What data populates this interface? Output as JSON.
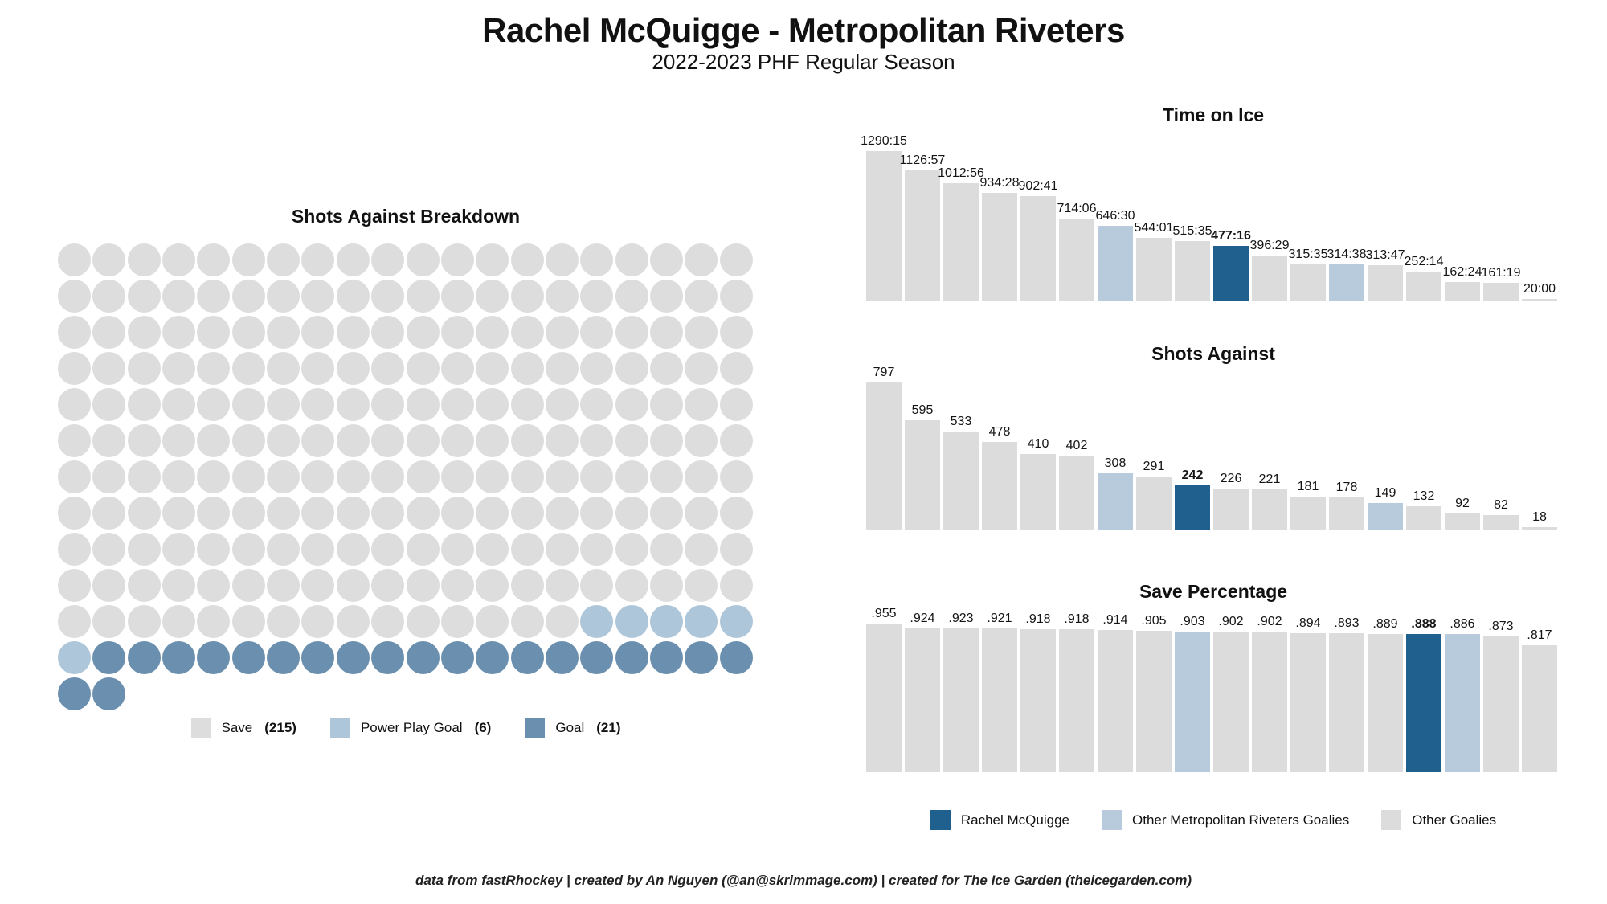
{
  "header": {
    "title": "Rachel McQuigge - Metropolitan Riveters",
    "subtitle": "2022-2023 PHF Regular Season"
  },
  "colors": {
    "rachel_blue": "#20608f",
    "riveters_light_blue": "#b7cbdc",
    "other_grey": "#dcdcdc",
    "waffle_save_grey": "#dddddd",
    "waffle_power_play_blue": "#aec6d9",
    "waffle_goal_blue": "#6b8fae"
  },
  "waffle": {
    "title": "Shots Against Breakdown",
    "columns": 20,
    "total_dots": 242,
    "segments": [
      {
        "name": "save",
        "count": 215,
        "color_key": "waffle_save_grey"
      },
      {
        "name": "power-play-goal",
        "count": 6,
        "color_key": "waffle_power_play_blue"
      },
      {
        "name": "goal",
        "count": 21,
        "color_key": "waffle_goal_blue"
      }
    ],
    "legend": [
      {
        "label": "Save",
        "count": "(215)",
        "color_key": "waffle_save_grey"
      },
      {
        "label": "Power Play  Goal",
        "count": "(6)",
        "color_key": "waffle_power_play_blue"
      },
      {
        "label": "Goal",
        "count": "(21)",
        "color_key": "waffle_goal_blue"
      }
    ]
  },
  "chart_data": [
    {
      "type": "bar",
      "id": "time-on-ice",
      "title": "Time on Ice",
      "labels": [
        "1290:15",
        "1126:57",
        "1012:56",
        "934:28",
        "902:41",
        "714:06",
        "646:30",
        "544:01",
        "515:35",
        "477:16",
        "396:29",
        "315:35",
        "314:38",
        "313:47",
        "252:14",
        "162:24",
        "161:19",
        "20:00"
      ],
      "values": [
        1290.25,
        1126.95,
        1012.93,
        934.47,
        902.68,
        714.1,
        646.5,
        544.02,
        515.58,
        477.27,
        396.48,
        315.58,
        314.63,
        313.78,
        252.23,
        162.4,
        161.32,
        20.0
      ],
      "groups": [
        "other",
        "other",
        "other",
        "other",
        "other",
        "other",
        "riveters",
        "other",
        "other",
        "rachel",
        "other",
        "other",
        "riveters",
        "other",
        "other",
        "other",
        "other",
        "other"
      ],
      "ylim": [
        0,
        1290.25
      ],
      "grid": "off",
      "value_unit": "minutes"
    },
    {
      "type": "bar",
      "id": "shots-against",
      "title": "Shots Against",
      "labels": [
        "797",
        "595",
        "533",
        "478",
        "410",
        "402",
        "308",
        "291",
        "242",
        "226",
        "221",
        "181",
        "178",
        "149",
        "132",
        "92",
        "82",
        "18"
      ],
      "values": [
        797,
        595,
        533,
        478,
        410,
        402,
        308,
        291,
        242,
        226,
        221,
        181,
        178,
        149,
        132,
        92,
        82,
        18
      ],
      "groups": [
        "other",
        "other",
        "other",
        "other",
        "other",
        "other",
        "riveters",
        "other",
        "rachel",
        "other",
        "other",
        "other",
        "other",
        "riveters",
        "other",
        "other",
        "other",
        "other"
      ],
      "ylim": [
        0,
        797
      ],
      "grid": "off",
      "value_unit": "shots"
    },
    {
      "type": "bar",
      "id": "save-percentage",
      "title": "Save Percentage",
      "labels": [
        ".955",
        ".924",
        ".923",
        ".921",
        ".918",
        ".918",
        ".914",
        ".905",
        ".903",
        ".902",
        ".902",
        ".894",
        ".893",
        ".889",
        ".888",
        ".886",
        ".873",
        ".817"
      ],
      "values": [
        0.955,
        0.924,
        0.923,
        0.921,
        0.918,
        0.918,
        0.914,
        0.905,
        0.903,
        0.902,
        0.902,
        0.894,
        0.893,
        0.889,
        0.888,
        0.886,
        0.873,
        0.817
      ],
      "groups": [
        "other",
        "other",
        "other",
        "other",
        "other",
        "other",
        "other",
        "other",
        "riveters",
        "other",
        "other",
        "other",
        "other",
        "other",
        "rachel",
        "riveters",
        "other",
        "other"
      ],
      "ylim": [
        0,
        1.0
      ],
      "grid": "off",
      "value_unit": "save_pct"
    }
  ],
  "bar_legend": [
    {
      "label": "Rachel McQuigge",
      "color_key": "rachel_blue"
    },
    {
      "label": "Other Metropolitan Riveters Goalies",
      "color_key": "riveters_light_blue"
    },
    {
      "label": "Other Goalies",
      "color_key": "other_grey"
    }
  ],
  "footer": {
    "credit": "data from fastRhockey | created by An Nguyen (@an@skrimmage.com) | created for The Ice Garden (theicegarden.com)"
  }
}
